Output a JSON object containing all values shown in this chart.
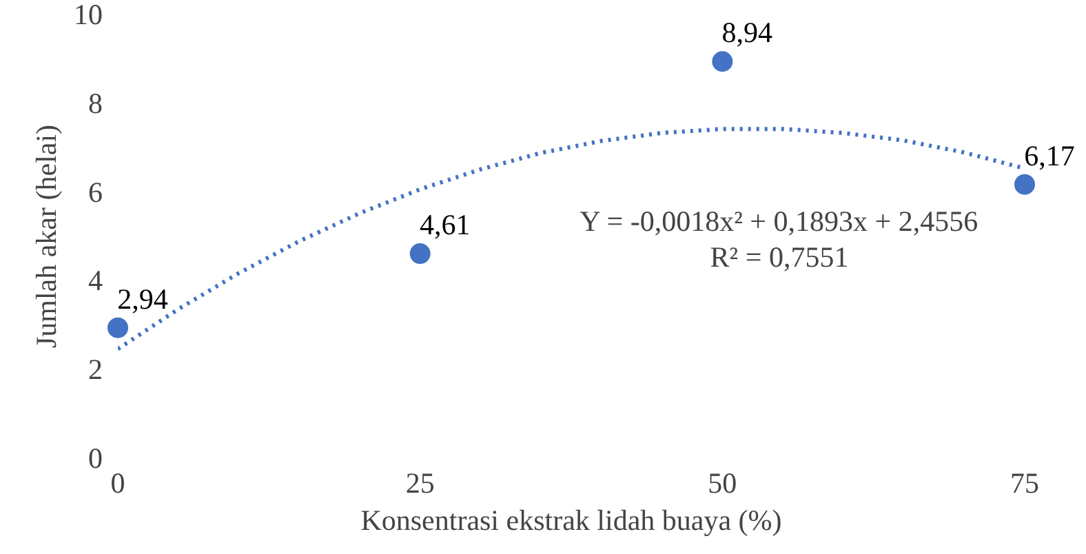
{
  "chart_data": {
    "type": "scatter",
    "xlabel": "Konsentrasi ekstrak lidah buaya (%)",
    "ylabel": "Jumlah akar (helai)",
    "x": [
      0,
      25,
      50,
      75
    ],
    "xlim": [
      0,
      75
    ],
    "xticks": [
      0,
      25,
      50,
      75
    ],
    "ylim": [
      0,
      10
    ],
    "yticks": [
      0,
      2,
      4,
      6,
      8,
      10
    ],
    "grid": false,
    "series": [
      {
        "color": "#4472c4",
        "marker": "circle",
        "values": [
          2.94,
          4.61,
          8.94,
          6.17
        ],
        "value_labels": [
          "2,94",
          "4,61",
          "8,94",
          "6,17"
        ]
      },
      {
        "type": "line",
        "line_style": "dotted",
        "color": "#4472c4",
        "x": [
          0,
          5,
          10,
          15,
          20,
          25,
          30,
          35,
          40,
          45,
          50,
          55,
          60,
          65,
          70,
          75
        ],
        "values": [
          2.46,
          3.36,
          4.17,
          4.89,
          5.52,
          6.06,
          6.51,
          6.88,
          7.15,
          7.33,
          7.42,
          7.42,
          7.33,
          7.16,
          6.89,
          6.53
        ]
      }
    ],
    "annotations": [
      "Y = -0,0018x² + 0,1893x + 2,4556",
      "R² = 0,7551"
    ]
  }
}
